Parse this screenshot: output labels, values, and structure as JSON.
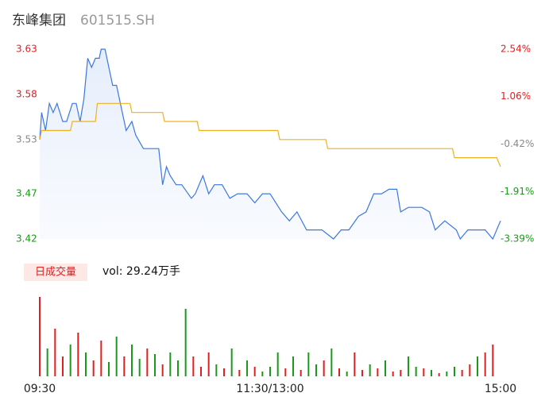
{
  "header": {
    "name": "东峰集团",
    "code": "601515.SH"
  },
  "chart_data": [
    {
      "type": "line",
      "xlim": [
        0,
        240
      ],
      "xticks": [
        {
          "value": 0,
          "label": "09:30"
        },
        {
          "value": 120,
          "label": "11:30/13:00"
        },
        {
          "value": 240,
          "label": "15:00"
        }
      ],
      "ylim": [
        3.42,
        3.63
      ],
      "yticks": [
        {
          "value": 3.42,
          "label": "3.42"
        },
        {
          "value": 3.47,
          "label": "3.47"
        },
        {
          "value": 3.53,
          "label": "3.53"
        },
        {
          "value": 3.58,
          "label": "3.58"
        },
        {
          "value": 3.63,
          "label": "3.63"
        }
      ],
      "ytick_colors": [
        "#1a9a1a",
        "#1a9a1a",
        "#888888",
        "#e02020",
        "#e02020"
      ],
      "y2lim": [
        -3.39,
        2.54
      ],
      "y2ticks": [
        {
          "value": -3.39,
          "label": "-3.39%"
        },
        {
          "value": -1.91,
          "label": "-1.91%"
        },
        {
          "value": -0.42,
          "label": "-0.42%"
        },
        {
          "value": 1.06,
          "label": "1.06%"
        },
        {
          "value": 2.54,
          "label": "2.54%"
        }
      ],
      "series": [
        {
          "name": "price",
          "color": "#3a78e0",
          "x": [
            0,
            1,
            3,
            5,
            7,
            9,
            12,
            14,
            17,
            19,
            21,
            23,
            25,
            27,
            29,
            31,
            32,
            34,
            36,
            38,
            40,
            42,
            45,
            48,
            50,
            54,
            58,
            62,
            64,
            66,
            68,
            71,
            74,
            79,
            81,
            85,
            88,
            91,
            95,
            99,
            103,
            108,
            112,
            116,
            120,
            126,
            130,
            134,
            139,
            143,
            147,
            153,
            157,
            161,
            166,
            170,
            174,
            178,
            182,
            186,
            188,
            192,
            199,
            203,
            206,
            211,
            217,
            219,
            223,
            232,
            236,
            240
          ],
          "values": [
            3.53,
            3.56,
            3.54,
            3.57,
            3.56,
            3.57,
            3.55,
            3.55,
            3.57,
            3.57,
            3.55,
            3.575,
            3.62,
            3.61,
            3.62,
            3.62,
            3.63,
            3.63,
            3.61,
            3.59,
            3.59,
            3.57,
            3.54,
            3.55,
            3.535,
            3.52,
            3.52,
            3.52,
            3.48,
            3.5,
            3.49,
            3.48,
            3.48,
            3.465,
            3.47,
            3.49,
            3.47,
            3.48,
            3.48,
            3.465,
            3.47,
            3.47,
            3.46,
            3.47,
            3.47,
            3.45,
            3.44,
            3.45,
            3.43,
            3.43,
            3.43,
            3.42,
            3.43,
            3.43,
            3.445,
            3.45,
            3.47,
            3.47,
            3.475,
            3.475,
            3.45,
            3.455,
            3.455,
            3.45,
            3.43,
            3.44,
            3.43,
            3.42,
            3.43,
            3.43,
            3.42,
            3.44
          ]
        },
        {
          "name": "average",
          "color": "#f0b020",
          "x": [
            0,
            1,
            16,
            17,
            29,
            30,
            47,
            48,
            64,
            65,
            82,
            83,
            124,
            125,
            149,
            150,
            215,
            216,
            238,
            240
          ],
          "values": [
            3.53,
            3.54,
            3.54,
            3.55,
            3.55,
            3.57,
            3.57,
            3.56,
            3.56,
            3.55,
            3.55,
            3.54,
            3.54,
            3.53,
            3.53,
            3.52,
            3.52,
            3.51,
            3.51,
            3.5
          ]
        }
      ]
    },
    {
      "type": "volume",
      "label": "日成交量",
      "vol_text": "vol: 29.24万手",
      "ylim": [
        0,
        100
      ],
      "x": [
        0,
        4,
        8,
        12,
        16,
        20,
        24,
        28,
        32,
        36,
        40,
        44,
        48,
        52,
        56,
        60,
        64,
        68,
        72,
        76,
        80,
        84,
        88,
        92,
        96,
        100,
        104,
        108,
        112,
        116,
        120,
        124,
        128,
        132,
        136,
        140,
        144,
        148,
        152,
        156,
        160,
        164,
        168,
        172,
        176,
        180,
        184,
        188,
        192,
        196,
        200,
        204,
        208,
        212,
        216,
        220,
        224,
        228,
        232,
        236
      ],
      "values": [
        100,
        35,
        60,
        25,
        40,
        55,
        30,
        20,
        45,
        18,
        50,
        25,
        40,
        22,
        35,
        28,
        15,
        30,
        20,
        85,
        25,
        12,
        30,
        15,
        10,
        35,
        8,
        20,
        12,
        6,
        12,
        30,
        10,
        25,
        8,
        30,
        15,
        20,
        35,
        10,
        6,
        30,
        8,
        15,
        10,
        20,
        6,
        8,
        25,
        12,
        10,
        8,
        4,
        6,
        12,
        8,
        15,
        25,
        30,
        40
      ],
      "colors": [
        "#e02020",
        "#1a9a1a",
        "#e02020",
        "#e02020",
        "#1a9a1a",
        "#e02020",
        "#1a9a1a",
        "#e02020",
        "#e02020",
        "#1a9a1a",
        "#1a9a1a",
        "#e02020",
        "#1a9a1a",
        "#1a9a1a",
        "#e02020",
        "#1a9a1a",
        "#e02020",
        "#1a9a1a",
        "#1a9a1a",
        "#1a9a1a",
        "#e02020",
        "#e02020",
        "#e02020",
        "#1a9a1a",
        "#e02020",
        "#1a9a1a",
        "#e02020",
        "#1a9a1a",
        "#e02020",
        "#1a9a1a",
        "#1a9a1a",
        "#1a9a1a",
        "#e02020",
        "#1a9a1a",
        "#e02020",
        "#1a9a1a",
        "#1a9a1a",
        "#e02020",
        "#1a9a1a",
        "#e02020",
        "#1a9a1a",
        "#e02020",
        "#e02020",
        "#1a9a1a",
        "#e02020",
        "#1a9a1a",
        "#e02020",
        "#e02020",
        "#1a9a1a",
        "#1a9a1a",
        "#e02020",
        "#1a9a1a",
        "#e02020",
        "#1a9a1a",
        "#1a9a1a",
        "#e02020",
        "#e02020",
        "#1a9a1a",
        "#e02020",
        "#e02020"
      ]
    }
  ]
}
